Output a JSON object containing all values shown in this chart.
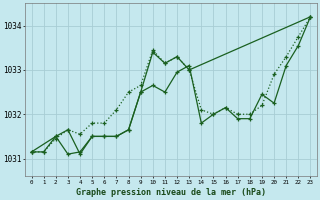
{
  "background_color": "#c5e8ee",
  "grid_color": "#a8cdd4",
  "line_color": "#1a6020",
  "title": "Graphe pression niveau de la mer (hPa)",
  "xlim": [
    -0.5,
    23.5
  ],
  "ylim": [
    1030.6,
    1034.5
  ],
  "yticks": [
    1031,
    1032,
    1033,
    1034
  ],
  "xticks": [
    0,
    1,
    2,
    3,
    4,
    5,
    6,
    7,
    8,
    9,
    10,
    11,
    12,
    13,
    14,
    15,
    16,
    17,
    18,
    19,
    20,
    21,
    22,
    23
  ],
  "series1_x": [
    0,
    1,
    2,
    3,
    4,
    5,
    6,
    7,
    8,
    9,
    10,
    11,
    12,
    13,
    14,
    15,
    16,
    17,
    18,
    19,
    20,
    21,
    22,
    23
  ],
  "series1_y": [
    1031.15,
    1031.15,
    1031.45,
    1031.65,
    1031.55,
    1031.8,
    1031.8,
    1032.1,
    1032.5,
    1032.65,
    1033.45,
    1033.15,
    1033.3,
    1033.0,
    1032.1,
    1032.0,
    1032.15,
    1032.0,
    1032.0,
    1032.2,
    1032.9,
    1033.3,
    1033.75,
    1034.2
  ],
  "series2_x": [
    0,
    2,
    3,
    4,
    5,
    6,
    7,
    8,
    9,
    10,
    11,
    12,
    13,
    14,
    15,
    16,
    17,
    18,
    19,
    20,
    21,
    22,
    23
  ],
  "series2_y": [
    1031.15,
    1031.5,
    1031.1,
    1031.15,
    1031.5,
    1031.5,
    1031.5,
    1031.65,
    1032.5,
    1032.65,
    1032.5,
    1032.95,
    1033.1,
    1031.8,
    1032.0,
    1032.15,
    1031.9,
    1031.9,
    1032.45,
    1032.25,
    1033.1,
    1033.55,
    1034.2
  ],
  "series3_x": [
    0,
    1,
    2,
    3,
    4,
    5,
    6,
    7,
    8,
    9,
    10,
    11,
    12,
    13,
    23
  ],
  "series3_y": [
    1031.15,
    1031.15,
    1031.5,
    1031.65,
    1031.1,
    1031.5,
    1031.5,
    1031.5,
    1031.65,
    1032.5,
    1033.4,
    1033.15,
    1033.3,
    1033.0,
    1034.2
  ]
}
